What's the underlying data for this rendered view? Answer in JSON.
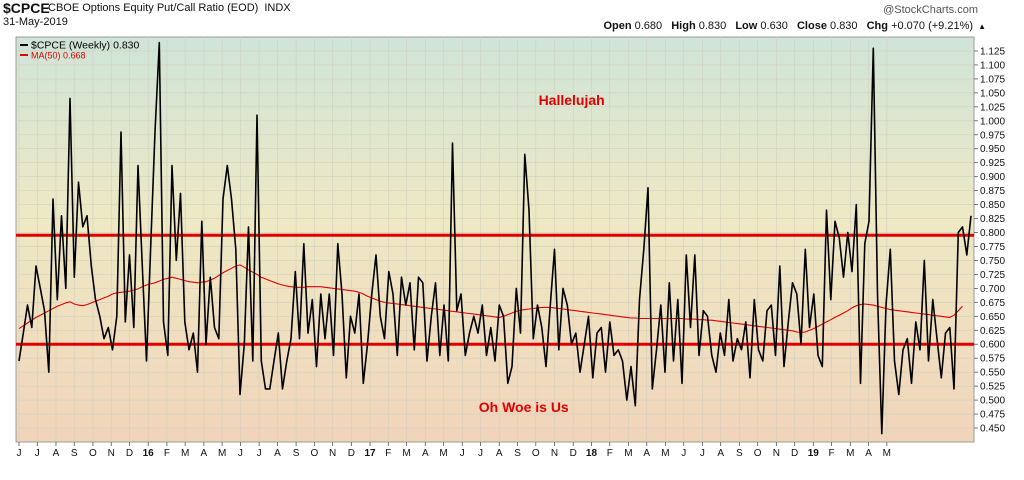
{
  "header": {
    "symbol": "$CPCE",
    "description": "CBOE Options Equity Put/Call Ratio (EOD)",
    "exchange": "INDX",
    "date": "31-May-2019",
    "brand": "@StockCharts.com",
    "open_label": "Open",
    "open": "0.680",
    "high_label": "High",
    "high": "0.830",
    "low_label": "Low",
    "low": "0.630",
    "close_label": "Close",
    "close": "0.830",
    "chg_label": "Chg",
    "chg": "+0.070 (+9.21%)",
    "chg_arrow": "▲"
  },
  "chart_data": {
    "type": "line",
    "legend": [
      {
        "label": "$CPCE (Weekly) 0.830",
        "color": "#000000"
      },
      {
        "label": "MA(50) 0.668",
        "color": "#e00000"
      }
    ],
    "ylim": [
      0.425,
      1.15
    ],
    "y_ticks": [
      0.45,
      0.475,
      0.5,
      0.525,
      0.55,
      0.575,
      0.6,
      0.625,
      0.65,
      0.675,
      0.7,
      0.725,
      0.75,
      0.775,
      0.8,
      0.825,
      0.85,
      0.875,
      0.9,
      0.925,
      0.95,
      0.975,
      1.0,
      1.025,
      1.05,
      1.075,
      1.1,
      1.125
    ],
    "x_ticks": [
      {
        "label": "J",
        "t": 0.0
      },
      {
        "label": "J",
        "t": 4.3
      },
      {
        "label": "A",
        "t": 8.7
      },
      {
        "label": "S",
        "t": 13.0
      },
      {
        "label": "O",
        "t": 17.4
      },
      {
        "label": "N",
        "t": 21.7
      },
      {
        "label": "D",
        "t": 26.0
      },
      {
        "label": "16",
        "t": 30.4,
        "bold": true
      },
      {
        "label": "F",
        "t": 34.8
      },
      {
        "label": "M",
        "t": 39.1
      },
      {
        "label": "A",
        "t": 43.5
      },
      {
        "label": "M",
        "t": 47.8
      },
      {
        "label": "J",
        "t": 52.1
      },
      {
        "label": "J",
        "t": 56.5
      },
      {
        "label": "A",
        "t": 60.8
      },
      {
        "label": "S",
        "t": 65.2
      },
      {
        "label": "O",
        "t": 69.5
      },
      {
        "label": "N",
        "t": 73.8
      },
      {
        "label": "D",
        "t": 78.2
      },
      {
        "label": "17",
        "t": 82.6,
        "bold": true
      },
      {
        "label": "F",
        "t": 86.9
      },
      {
        "label": "M",
        "t": 91.2
      },
      {
        "label": "A",
        "t": 95.6
      },
      {
        "label": "M",
        "t": 99.9
      },
      {
        "label": "J",
        "t": 104.3
      },
      {
        "label": "J",
        "t": 108.6
      },
      {
        "label": "A",
        "t": 113.0
      },
      {
        "label": "S",
        "t": 117.3
      },
      {
        "label": "O",
        "t": 121.6
      },
      {
        "label": "N",
        "t": 126.0
      },
      {
        "label": "D",
        "t": 130.4
      },
      {
        "label": "18",
        "t": 134.7,
        "bold": true
      },
      {
        "label": "F",
        "t": 139.0
      },
      {
        "label": "M",
        "t": 143.4
      },
      {
        "label": "A",
        "t": 147.7
      },
      {
        "label": "M",
        "t": 152.1
      },
      {
        "label": "J",
        "t": 156.4
      },
      {
        "label": "J",
        "t": 160.8
      },
      {
        "label": "A",
        "t": 165.1
      },
      {
        "label": "S",
        "t": 169.5
      },
      {
        "label": "O",
        "t": 173.8
      },
      {
        "label": "N",
        "t": 178.2
      },
      {
        "label": "D",
        "t": 182.5
      },
      {
        "label": "19",
        "t": 186.9,
        "bold": true
      },
      {
        "label": "F",
        "t": 191.2
      },
      {
        "label": "M",
        "t": 195.6
      },
      {
        "label": "A",
        "t": 199.9
      },
      {
        "label": "M",
        "t": 204.2
      }
    ],
    "series": [
      {
        "name": "$CPCE (Weekly)",
        "color": "#000000",
        "values": [
          0.57,
          0.62,
          0.67,
          0.63,
          0.74,
          0.7,
          0.66,
          0.55,
          0.86,
          0.68,
          0.83,
          0.7,
          1.04,
          0.72,
          0.89,
          0.81,
          0.83,
          0.74,
          0.68,
          0.65,
          0.61,
          0.63,
          0.59,
          0.65,
          0.98,
          0.64,
          0.76,
          0.63,
          0.92,
          0.74,
          0.57,
          0.78,
          0.98,
          1.14,
          0.64,
          0.58,
          0.92,
          0.75,
          0.87,
          0.64,
          0.59,
          0.62,
          0.55,
          0.82,
          0.6,
          0.72,
          0.63,
          0.61,
          0.86,
          0.92,
          0.86,
          0.77,
          0.51,
          0.6,
          0.81,
          0.57,
          1.01,
          0.57,
          0.52,
          0.52,
          0.57,
          0.62,
          0.52,
          0.57,
          0.61,
          0.73,
          0.61,
          0.78,
          0.62,
          0.68,
          0.56,
          0.69,
          0.61,
          0.69,
          0.58,
          0.78,
          0.69,
          0.54,
          0.65,
          0.62,
          0.69,
          0.53,
          0.6,
          0.69,
          0.76,
          0.65,
          0.61,
          0.73,
          0.69,
          0.58,
          0.72,
          0.67,
          0.71,
          0.59,
          0.72,
          0.71,
          0.57,
          0.65,
          0.71,
          0.58,
          0.67,
          0.57,
          0.96,
          0.66,
          0.69,
          0.58,
          0.62,
          0.65,
          0.62,
          0.67,
          0.58,
          0.63,
          0.57,
          0.67,
          0.65,
          0.53,
          0.56,
          0.7,
          0.62,
          0.94,
          0.84,
          0.61,
          0.67,
          0.63,
          0.56,
          0.67,
          0.77,
          0.59,
          0.7,
          0.67,
          0.6,
          0.62,
          0.55,
          0.6,
          0.65,
          0.54,
          0.62,
          0.63,
          0.55,
          0.64,
          0.58,
          0.59,
          0.57,
          0.5,
          0.56,
          0.49,
          0.68,
          0.77,
          0.88,
          0.52,
          0.59,
          0.67,
          0.55,
          0.71,
          0.57,
          0.68,
          0.53,
          0.76,
          0.63,
          0.76,
          0.58,
          0.66,
          0.65,
          0.58,
          0.55,
          0.62,
          0.58,
          0.68,
          0.57,
          0.61,
          0.59,
          0.64,
          0.54,
          0.68,
          0.59,
          0.57,
          0.66,
          0.67,
          0.58,
          0.74,
          0.56,
          0.64,
          0.71,
          0.69,
          0.6,
          0.77,
          0.63,
          0.69,
          0.58,
          0.56,
          0.84,
          0.68,
          0.82,
          0.79,
          0.72,
          0.8,
          0.73,
          0.85,
          0.53,
          0.78,
          0.82,
          1.13,
          0.69,
          0.44,
          0.67,
          0.77,
          0.57,
          0.51,
          0.59,
          0.61,
          0.53,
          0.64,
          0.59,
          0.75,
          0.57,
          0.68,
          0.61,
          0.54,
          0.62,
          0.63,
          0.52,
          0.8,
          0.81,
          0.76,
          0.83
        ]
      },
      {
        "name": "MA(50)",
        "color": "#e00000",
        "values": [
          0.628,
          0.633,
          0.638,
          0.643,
          0.648,
          0.652,
          0.656,
          0.66,
          0.664,
          0.668,
          0.671,
          0.674,
          0.676,
          0.672,
          0.67,
          0.669,
          0.671,
          0.674,
          0.677,
          0.68,
          0.683,
          0.686,
          0.69,
          0.692,
          0.693,
          0.694,
          0.695,
          0.697,
          0.699,
          0.703,
          0.706,
          0.708,
          0.71,
          0.713,
          0.716,
          0.718,
          0.72,
          0.718,
          0.716,
          0.714,
          0.712,
          0.711,
          0.71,
          0.711,
          0.712,
          0.715,
          0.718,
          0.723,
          0.728,
          0.732,
          0.736,
          0.74,
          0.742,
          0.738,
          0.733,
          0.729,
          0.725,
          0.72,
          0.717,
          0.714,
          0.711,
          0.708,
          0.706,
          0.704,
          0.703,
          0.702,
          0.702,
          0.702,
          0.703,
          0.703,
          0.703,
          0.703,
          0.702,
          0.701,
          0.7,
          0.699,
          0.698,
          0.697,
          0.696,
          0.695,
          0.693,
          0.69,
          0.686,
          0.683,
          0.68,
          0.677,
          0.675,
          0.674,
          0.673,
          0.672,
          0.671,
          0.67,
          0.669,
          0.668,
          0.667,
          0.666,
          0.665,
          0.664,
          0.663,
          0.662,
          0.661,
          0.66,
          0.659,
          0.658,
          0.657,
          0.656,
          0.655,
          0.654,
          0.653,
          0.652,
          0.651,
          0.65,
          0.649,
          0.648,
          0.65,
          0.653,
          0.656,
          0.659,
          0.661,
          0.662,
          0.663,
          0.664,
          0.665,
          0.666,
          0.666,
          0.666,
          0.665,
          0.664,
          0.663,
          0.662,
          0.661,
          0.66,
          0.659,
          0.658,
          0.657,
          0.656,
          0.655,
          0.654,
          0.653,
          0.652,
          0.651,
          0.65,
          0.649,
          0.648,
          0.647,
          0.647,
          0.646,
          0.646,
          0.646,
          0.646,
          0.646,
          0.646,
          0.646,
          0.646,
          0.646,
          0.646,
          0.646,
          0.645,
          0.645,
          0.645,
          0.644,
          0.644,
          0.643,
          0.643,
          0.642,
          0.641,
          0.64,
          0.639,
          0.638,
          0.637,
          0.636,
          0.635,
          0.634,
          0.633,
          0.632,
          0.631,
          0.63,
          0.629,
          0.628,
          0.627,
          0.626,
          0.625,
          0.624,
          0.622,
          0.621,
          0.622,
          0.625,
          0.628,
          0.632,
          0.636,
          0.64,
          0.644,
          0.648,
          0.652,
          0.656,
          0.66,
          0.665,
          0.669,
          0.671,
          0.672,
          0.671,
          0.67,
          0.668,
          0.666,
          0.664,
          0.662,
          0.661,
          0.66,
          0.659,
          0.658,
          0.657,
          0.656,
          0.655,
          0.654,
          0.653,
          0.652,
          0.651,
          0.65,
          0.649,
          0.648,
          0.652,
          0.66,
          0.668
        ]
      }
    ],
    "reference_lines": [
      0.795,
      0.6
    ],
    "annotations": [
      {
        "text": "Hallelujah",
        "x": 0.58,
        "y": 1.0375
      },
      {
        "text": "Oh Woe is Us",
        "x": 0.53,
        "y": 0.4875
      }
    ]
  }
}
